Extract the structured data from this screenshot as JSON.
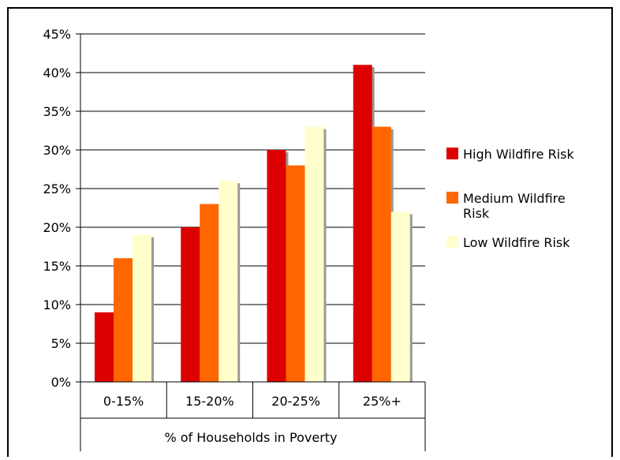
{
  "chart_data": {
    "type": "bar",
    "title": "",
    "xlabel": "% of Households in Poverty",
    "ylabel": "",
    "ylim": [
      0,
      45
    ],
    "yticks": [
      0,
      5,
      10,
      15,
      20,
      25,
      30,
      35,
      40,
      45
    ],
    "ytick_labels": [
      "0%",
      "5%",
      "10%",
      "15%",
      "20%",
      "25%",
      "30%",
      "35%",
      "40%",
      "45%"
    ],
    "grid": true,
    "legend_position": "right",
    "categories": [
      "0-15%",
      "15-20%",
      "20-25%",
      "25%+"
    ],
    "series": [
      {
        "name": "High Wildfire Risk",
        "label_lines": [
          "High Wildfire Risk"
        ],
        "color": "#dd0000",
        "values": [
          9,
          20,
          30,
          41
        ]
      },
      {
        "name": "Medium Wildfire Risk",
        "label_lines": [
          "Medium Wildfire",
          "Risk"
        ],
        "color": "#ff6600",
        "values": [
          16,
          23,
          28,
          33
        ]
      },
      {
        "name": "Low Wildfire Risk",
        "label_lines": [
          "Low Wildfire Risk"
        ],
        "color": "#ffffcc",
        "values": [
          19,
          26,
          33,
          22
        ]
      }
    ]
  }
}
